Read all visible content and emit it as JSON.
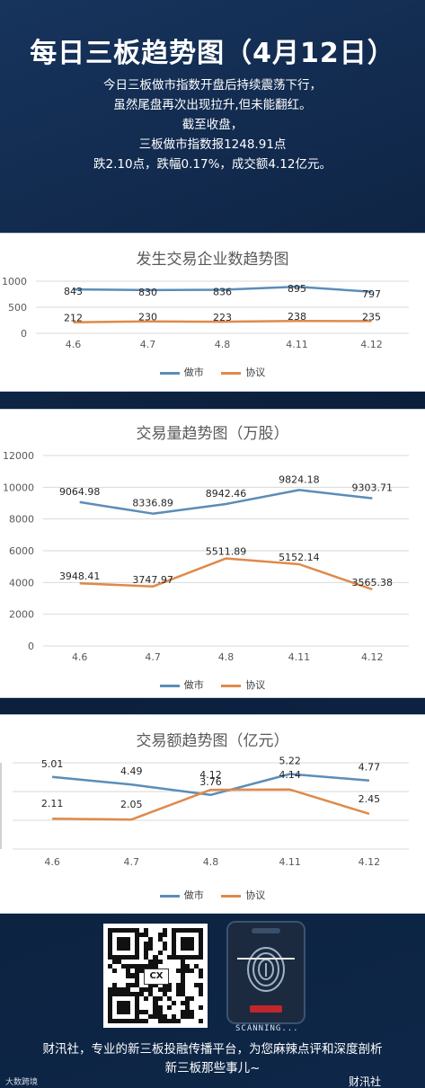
{
  "header": {
    "title": "每日三板趋势图（4月12日）",
    "summary": [
      "今日三板做市指数开盘后持续震荡下行，",
      "虽然尾盘再次出现拉升,但未能翻红。",
      "截至收盘，",
      "三板做市指数报1248.91点",
      "跌2.10点，跌幅0.17%，成交额4.12亿元。"
    ]
  },
  "chart_data": [
    {
      "type": "line",
      "title": "发生交易企业数趋势图",
      "categories": [
        "4.6",
        "4.7",
        "4.8",
        "4.11",
        "4.12"
      ],
      "series": [
        {
          "name": "做市",
          "values": [
            843,
            830,
            836,
            895,
            797
          ],
          "color": "#5b8db8"
        },
        {
          "name": "协议",
          "values": [
            212,
            230,
            223,
            238,
            235
          ],
          "color": "#e0894a"
        }
      ],
      "yticks": [
        "1000",
        "500",
        "0"
      ],
      "ylim": [
        0,
        1000
      ],
      "grid": true,
      "legend": "bottom"
    },
    {
      "type": "line",
      "title": "交易量趋势图（万股）",
      "categories": [
        "4.6",
        "4.7",
        "4.8",
        "4.11",
        "4.12"
      ],
      "series": [
        {
          "name": "做市",
          "values": [
            9064.98,
            8336.89,
            8942.46,
            9824.18,
            9303.71
          ],
          "labels": [
            "9064.98",
            "8336.89",
            "8942.46",
            "9824.18",
            "9303.71"
          ],
          "color": "#5b8db8"
        },
        {
          "name": "协议",
          "values": [
            3948.41,
            3747.97,
            5511.89,
            5152.14,
            3565.38
          ],
          "labels": [
            "3948.41",
            "3747.97",
            "5511.89",
            "5152.14",
            "3565.38"
          ],
          "color": "#e0894a"
        }
      ],
      "yticks": [
        "12000",
        "10000",
        "8000",
        "6000",
        "4000",
        "2000",
        "0"
      ],
      "ylim": [
        0,
        12000
      ],
      "grid": true,
      "legend": "bottom"
    },
    {
      "type": "line",
      "title": "交易额趋势图（亿元）",
      "categories": [
        "4.6",
        "4.7",
        "4.8",
        "4.11",
        "4.12"
      ],
      "series": [
        {
          "name": "做市",
          "values": [
            5.01,
            4.49,
            3.76,
            5.22,
            4.77
          ],
          "labels": [
            "5.01",
            "4.49",
            "3.76",
            "5.22",
            "4.77"
          ],
          "color": "#5b8db8"
        },
        {
          "name": "协议",
          "values": [
            2.11,
            2.05,
            4.12,
            4.14,
            2.45
          ],
          "labels": [
            "2.11",
            "2.05",
            "4.12",
            "4.14",
            "2.45"
          ],
          "color": "#e0894a"
        }
      ],
      "ylim": [
        0,
        6
      ],
      "grid": true,
      "legend": "bottom"
    }
  ],
  "footer": {
    "qr_logo": "CX",
    "scan_text": "SCANNING...",
    "slogan": [
      "财汛社，专业的新三板投融传播平台，为您麻辣点评和深度剖析",
      "新三板那些事儿~"
    ],
    "brand_left": "大数跨境",
    "brand_right": "财汛社"
  }
}
